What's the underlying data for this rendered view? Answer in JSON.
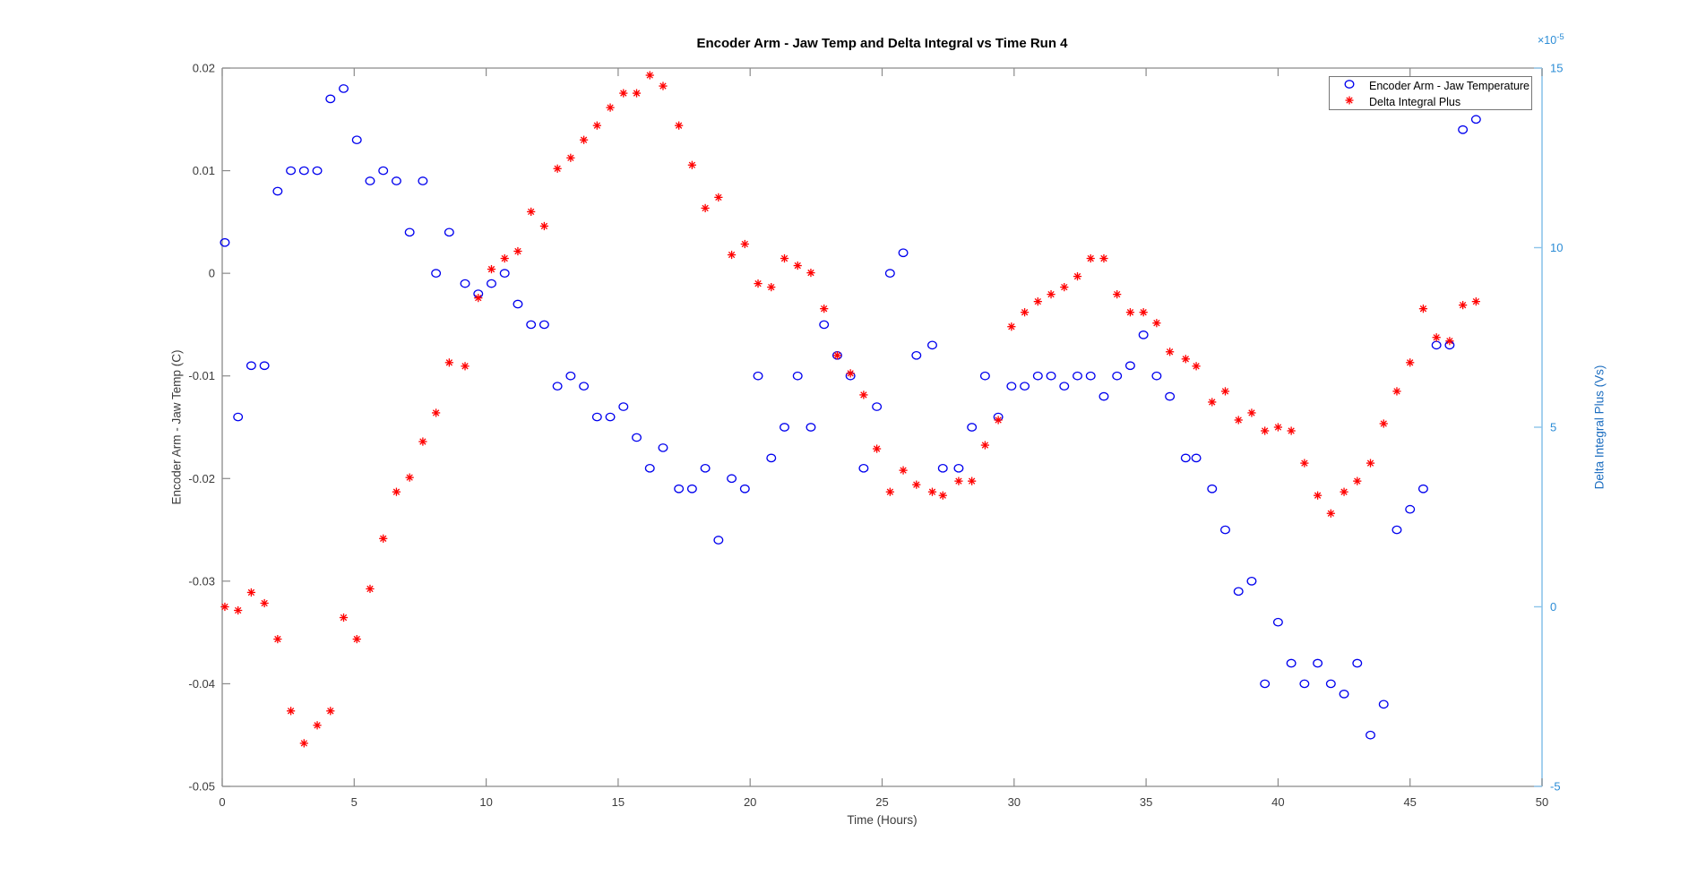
{
  "figure": {
    "title": "Encoder Arm - Jaw Temp and Delta Integral vs Time Run 4",
    "xlabel": "Time (Hours)",
    "ylabel_left": "Encoder Arm - Jaw Temp (C)",
    "ylabel_right": "Delta Integral Plus (Vs)",
    "right_axis_multiplier_base": "×10",
    "right_axis_multiplier_exp": "-5"
  },
  "legend": {
    "items": [
      {
        "label": "Encoder Arm - Jaw Temperature",
        "marker": "circle",
        "color": "#0000EE"
      },
      {
        "label": "Delta Integral Plus",
        "marker": "asterisk",
        "color": "#FF0000"
      }
    ]
  },
  "colors": {
    "blue_series": "#0000EE",
    "red_series": "#FF0000",
    "axis_frame": "#8a8a8a",
    "tick_label": "#3c3c3c",
    "right_axis_line": "#8cc4ea",
    "right_axis_tick_label": "#2b8cd6",
    "right_axis_title": "#1d6ec0"
  },
  "chart_data": {
    "type": "scatter",
    "title": "Encoder Arm - Jaw Temp and Delta Integral vs Time Run 4",
    "xlabel": "Time (Hours)",
    "ylabel_left": "Encoder Arm - Jaw Temp (C)",
    "ylabel_right": "Delta Integral Plus (Vs)",
    "grid": false,
    "legend_position": "top-right",
    "xlim": [
      0,
      50
    ],
    "ylim_left": [
      -0.05,
      0.02
    ],
    "ylim_right": [
      -5,
      15
    ],
    "right_axis_scale": "1e-5",
    "x_tick_labels": [
      "0",
      "5",
      "10",
      "15",
      "20",
      "25",
      "30",
      "35",
      "40",
      "45",
      "50"
    ],
    "left_tick_labels": [
      "0.02",
      "0.01",
      "0",
      "-0.01",
      "-0.02",
      "-0.03",
      "-0.04",
      "-0.05"
    ],
    "right_tick_labels": [
      "15",
      "10",
      "5",
      "0",
      "-5"
    ],
    "x": [
      0.1,
      0.6,
      1.1,
      1.6,
      2.1,
      2.6,
      3.1,
      3.6,
      4.1,
      4.6,
      5.1,
      5.6,
      6.1,
      6.6,
      7.1,
      7.6,
      8.1,
      8.6,
      9.2,
      9.7,
      10.2,
      10.7,
      11.2,
      11.7,
      12.2,
      12.7,
      13.2,
      13.7,
      14.2,
      14.7,
      15.2,
      15.7,
      16.2,
      16.7,
      17.3,
      17.8,
      18.3,
      18.8,
      19.3,
      19.8,
      20.3,
      20.8,
      21.3,
      21.8,
      22.3,
      22.8,
      23.3,
      23.8,
      24.3,
      24.8,
      25.3,
      25.8,
      26.3,
      26.9,
      27.3,
      27.9,
      28.4,
      28.9,
      29.4,
      29.9,
      30.4,
      30.9,
      31.4,
      31.9,
      32.4,
      32.9,
      33.4,
      33.9,
      34.4,
      34.9,
      35.4,
      35.9,
      36.5,
      36.9,
      37.5,
      38.0,
      38.5,
      39.0,
      39.5,
      40.0,
      40.5,
      41.0,
      41.5,
      42.0,
      42.5,
      43.0,
      43.5,
      44.0,
      44.5,
      45.0,
      45.5,
      46.0,
      46.5,
      47.0,
      47.5
    ],
    "series": [
      {
        "name": "Encoder Arm - Jaw Temperature",
        "axis": "left",
        "marker": "circle",
        "color": "#0000EE",
        "values": [
          0.003,
          -0.014,
          -0.009,
          -0.009,
          0.008,
          0.01,
          0.01,
          0.01,
          0.017,
          0.018,
          0.013,
          0.009,
          0.01,
          0.009,
          0.004,
          0.009,
          0.0,
          0.004,
          -0.001,
          -0.002,
          -0.001,
          0.0,
          -0.003,
          -0.005,
          -0.005,
          -0.011,
          -0.01,
          -0.011,
          -0.014,
          -0.014,
          -0.013,
          -0.016,
          -0.019,
          -0.017,
          -0.021,
          -0.021,
          -0.019,
          -0.026,
          -0.02,
          -0.021,
          -0.01,
          -0.018,
          -0.015,
          -0.01,
          -0.015,
          -0.005,
          -0.008,
          -0.01,
          -0.019,
          -0.013,
          0.0,
          0.002,
          -0.008,
          -0.007,
          -0.019,
          -0.019,
          -0.015,
          -0.01,
          -0.014,
          -0.011,
          -0.011,
          -0.01,
          -0.01,
          -0.011,
          -0.01,
          -0.01,
          -0.012,
          -0.01,
          -0.009,
          -0.006,
          -0.01,
          -0.012,
          -0.018,
          -0.018,
          -0.021,
          -0.025,
          -0.031,
          -0.03,
          -0.04,
          -0.034,
          -0.038,
          -0.04,
          -0.038,
          -0.04,
          -0.041,
          -0.038,
          -0.045,
          -0.042,
          -0.025,
          -0.023,
          -0.021,
          -0.007,
          -0.007,
          0.014,
          0.015
        ]
      },
      {
        "name": "Delta Integral Plus",
        "axis": "right",
        "marker": "asterisk",
        "color": "#FF0000",
        "values": [
          0.0,
          -0.1,
          0.4,
          0.1,
          -0.9,
          -2.9,
          -3.8,
          -3.3,
          -2.9,
          -0.3,
          -0.9,
          0.5,
          1.9,
          3.2,
          3.6,
          4.6,
          5.4,
          6.8,
          6.7,
          8.6,
          9.4,
          9.7,
          9.9,
          11.0,
          10.6,
          12.2,
          12.5,
          13.0,
          13.4,
          13.9,
          14.3,
          14.3,
          14.8,
          14.5,
          13.4,
          12.3,
          11.1,
          11.4,
          9.8,
          10.1,
          9.0,
          8.9,
          9.7,
          9.5,
          9.3,
          8.3,
          7.0,
          6.5,
          5.9,
          4.4,
          3.2,
          3.8,
          3.4,
          3.2,
          3.1,
          3.5,
          3.5,
          4.5,
          5.2,
          7.8,
          8.2,
          8.5,
          8.7,
          8.9,
          9.2,
          9.7,
          9.7,
          8.7,
          8.2,
          8.2,
          7.9,
          7.1,
          6.9,
          6.7,
          5.7,
          6.0,
          5.2,
          5.4,
          4.9,
          5.0,
          4.9,
          4.0,
          3.1,
          2.6,
          3.2,
          3.5,
          4.0,
          5.1,
          6.0,
          6.8,
          8.3,
          7.5,
          7.4,
          8.4,
          8.5
        ]
      }
    ]
  }
}
